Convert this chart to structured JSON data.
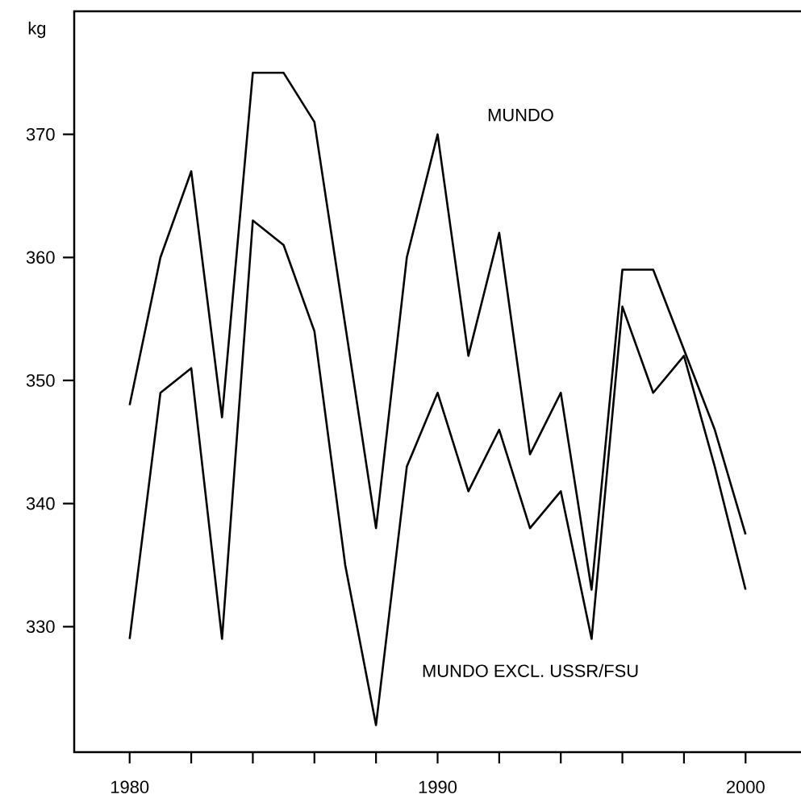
{
  "chart_data": {
    "type": "line",
    "ylabel": "kg",
    "x": [
      1980,
      1981,
      1982,
      1983,
      1984,
      1985,
      1986,
      1987,
      1988,
      1989,
      1990,
      1991,
      1992,
      1993,
      1994,
      1995,
      1996,
      1997,
      1998,
      1999,
      2000
    ],
    "series": [
      {
        "name": "MUNDO",
        "color": "#000000",
        "values": [
          348,
          360,
          367,
          347,
          375,
          375,
          371,
          354.5,
          338,
          360,
          370,
          352,
          362,
          344,
          349,
          333,
          359,
          359,
          352.5,
          346,
          337.5
        ]
      },
      {
        "name": "MUNDO EXCL. USSR/FSU",
        "color": "#000000",
        "values": [
          329,
          349,
          351,
          329,
          363,
          361,
          354,
          335,
          322,
          343,
          349,
          341,
          346,
          338,
          341,
          329,
          356,
          349,
          352,
          343,
          333
        ]
      }
    ],
    "xlim": [
      1978.2,
      2001.8
    ],
    "ylim": [
      319.8,
      380
    ],
    "xticks": [
      1980,
      {
        "value": 1982,
        "label": null
      },
      {
        "value": 1984,
        "label": null
      },
      {
        "value": 1986,
        "label": null
      },
      {
        "value": 1988,
        "label": null
      },
      1990,
      {
        "value": 1992,
        "label": null
      },
      {
        "value": 1994,
        "label": null
      },
      {
        "value": 1996,
        "label": null
      },
      {
        "value": 1998,
        "label": null
      },
      2000
    ],
    "yticks": [
      330,
      340,
      350,
      360,
      370
    ],
    "grid": false,
    "legend": false,
    "marker": "none",
    "line_style": "solid"
  }
}
